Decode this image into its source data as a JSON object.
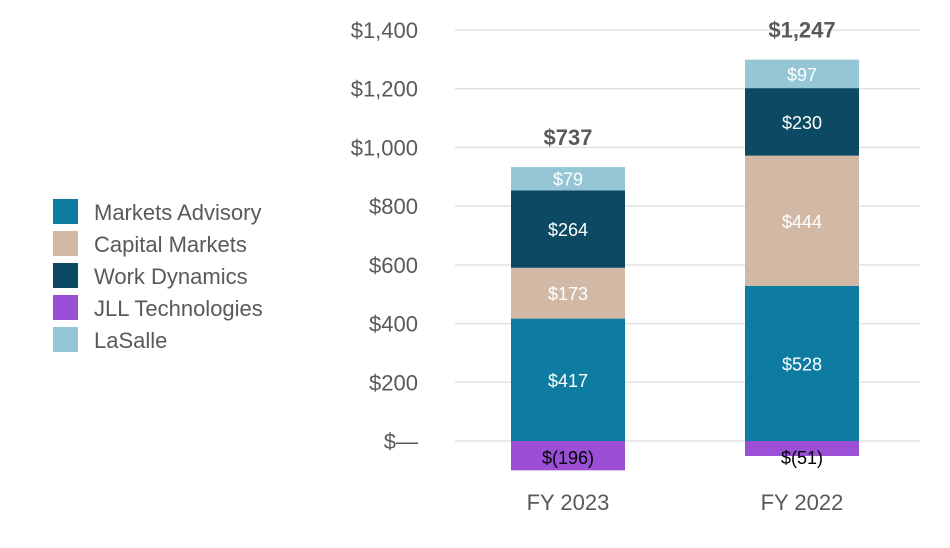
{
  "chart_data": {
    "type": "bar",
    "stacked": true,
    "categories": [
      "FY 2023",
      "FY 2022"
    ],
    "series": [
      {
        "name": "Markets Advisory",
        "color": "#0e7ba0",
        "values": [
          417,
          528
        ],
        "labels": [
          "$417",
          "$528"
        ]
      },
      {
        "name": "Capital Markets",
        "color": "#d1b9a6",
        "values": [
          173,
          444
        ],
        "labels": [
          "$173",
          "$444"
        ]
      },
      {
        "name": "Work Dynamics",
        "color": "#0b4a62",
        "values": [
          264,
          230
        ],
        "labels": [
          "$264",
          "$230"
        ]
      },
      {
        "name": "JLL Technologies",
        "color": "#9b4fd6",
        "values": [
          -196,
          -51
        ],
        "labels": [
          "$(196)",
          "$(51)"
        ]
      },
      {
        "name": "LaSalle",
        "color": "#95c6d6",
        "values": [
          79,
          97
        ],
        "labels": [
          "$79",
          "$97"
        ]
      }
    ],
    "totals": [
      "$737",
      "$1,247"
    ],
    "yticks": [
      0,
      200,
      400,
      600,
      800,
      1000,
      1200,
      1400
    ],
    "ytick_labels": [
      "$—",
      "$200",
      "$400",
      "$600",
      "$800",
      "$1,000",
      "$1,200",
      "$1,400"
    ],
    "ylim": [
      -100,
      1400
    ],
    "grid": true,
    "legend_position": "left",
    "title": "",
    "xlabel": "",
    "ylabel": ""
  }
}
